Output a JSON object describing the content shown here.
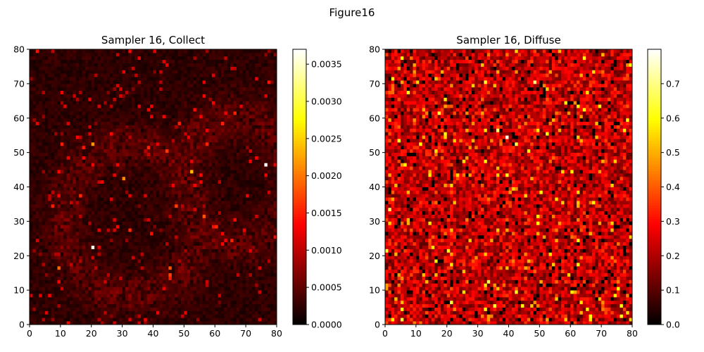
{
  "figure_title": "Figure16",
  "chart_data": [
    {
      "type": "heatmap",
      "title": "Sampler 16, Collect",
      "xlim": [
        0,
        80
      ],
      "ylim": [
        0,
        80
      ],
      "xticks": [
        "0",
        "10",
        "20",
        "30",
        "40",
        "50",
        "60",
        "70",
        "80"
      ],
      "yticks": [
        "0",
        "10",
        "20",
        "30",
        "40",
        "50",
        "60",
        "70",
        "80"
      ],
      "colormap": "hot",
      "grid_size": [
        80,
        80
      ],
      "colorbar": {
        "min": 0.0,
        "max": 0.0037,
        "ticks": [
          "0.0000",
          "0.0005",
          "0.0010",
          "0.0015",
          "0.0020",
          "0.0025",
          "0.0030",
          "0.0035"
        ],
        "tick_values": [
          0.0,
          0.0005,
          0.001,
          0.0015,
          0.002,
          0.0025,
          0.003,
          0.0035
        ]
      },
      "highlights": [
        {
          "x": 76.5,
          "y": 46.5,
          "value": 0.0037
        },
        {
          "x": 20.5,
          "y": 22.5,
          "value": 0.0036
        },
        {
          "x": 52.5,
          "y": 44.5,
          "value": 0.0024
        },
        {
          "x": 20.5,
          "y": 52.5,
          "value": 0.0022
        },
        {
          "x": 30.5,
          "y": 42.5,
          "value": 0.0021
        },
        {
          "x": 9.5,
          "y": 16.5,
          "value": 0.0019
        },
        {
          "x": 45.5,
          "y": 16.5,
          "value": 0.0018
        },
        {
          "x": 47.5,
          "y": 34.5,
          "value": 0.0017
        },
        {
          "x": 32.5,
          "y": 27.5,
          "value": 0.0016
        },
        {
          "x": 10.5,
          "y": 52.5,
          "value": 0.0015
        }
      ]
    },
    {
      "type": "heatmap",
      "title": "Sampler 16, Diffuse",
      "xlim": [
        0,
        80
      ],
      "ylim": [
        0,
        80
      ],
      "xticks": [
        "0",
        "10",
        "20",
        "30",
        "40",
        "50",
        "60",
        "70",
        "80"
      ],
      "yticks": [
        "0",
        "10",
        "20",
        "30",
        "40",
        "50",
        "60",
        "70",
        "80"
      ],
      "colormap": "hot",
      "grid_size": [
        80,
        80
      ],
      "colorbar": {
        "min": 0.0,
        "max": 0.8,
        "ticks": [
          "0.0",
          "0.1",
          "0.2",
          "0.3",
          "0.4",
          "0.5",
          "0.6",
          "0.7"
        ],
        "tick_values": [
          0.0,
          0.1,
          0.2,
          0.3,
          0.4,
          0.5,
          0.6,
          0.7
        ]
      },
      "highlights": [
        {
          "x": 39.5,
          "y": 54.5,
          "value": 0.78
        },
        {
          "x": 48.5,
          "y": 70.5,
          "value": 0.7
        },
        {
          "x": 36.5,
          "y": 56.5,
          "value": 0.68
        },
        {
          "x": 42.5,
          "y": 52.5,
          "value": 0.66
        },
        {
          "x": 7.5,
          "y": 67.5,
          "value": 0.62
        },
        {
          "x": 19.5,
          "y": 55.5,
          "value": 0.6
        },
        {
          "x": 0.5,
          "y": 21.5,
          "value": 0.65
        },
        {
          "x": 49.5,
          "y": 29.5,
          "value": 0.6
        },
        {
          "x": 42.5,
          "y": 9.5,
          "value": 0.62
        },
        {
          "x": 62.5,
          "y": 63.5,
          "value": 0.58
        },
        {
          "x": 69.5,
          "y": 63.5,
          "value": 0.58
        },
        {
          "x": 11.5,
          "y": 52.5,
          "value": 0.6
        },
        {
          "x": 76.5,
          "y": 5.5,
          "value": 0.6
        }
      ]
    }
  ]
}
